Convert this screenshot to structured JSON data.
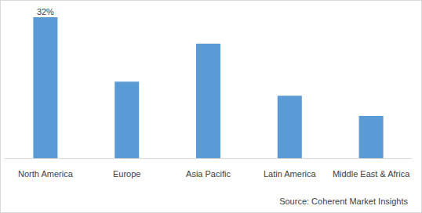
{
  "chart_data": {
    "type": "bar",
    "categories": [
      "North America",
      "Europe",
      "Asia Pacific",
      "Latin America",
      "Middle East & Africa"
    ],
    "values": [
      32,
      17.4,
      26,
      14.2,
      9.6
    ],
    "value_labels": [
      "32%",
      null,
      null,
      null,
      null
    ],
    "data_labels": true,
    "color": "#5b9bd5",
    "ylim": [
      0,
      32
    ],
    "yticks": [
      0,
      32
    ],
    "grid": false,
    "tick_labels": "x",
    "annotations": [
      "Source: Coherent Market Insights"
    ]
  }
}
